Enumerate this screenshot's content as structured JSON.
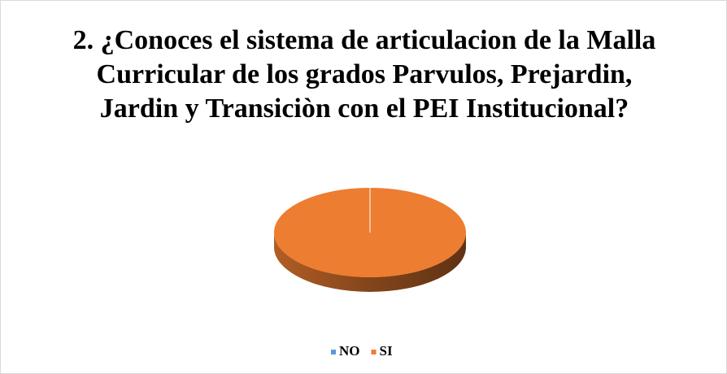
{
  "chart_data": {
    "type": "pie3d",
    "title": "2. ¿Conoces el sistema de articulacion de la Malla Curricular de los grados Parvulos, Prejardin, Jardin y Transiciòn con el PEI Institucional?",
    "categories": [
      "NO",
      "SI"
    ],
    "values": [
      0,
      100
    ],
    "colors": [
      "#5b9bd5",
      "#ed7d31"
    ],
    "legend": "bottom"
  }
}
